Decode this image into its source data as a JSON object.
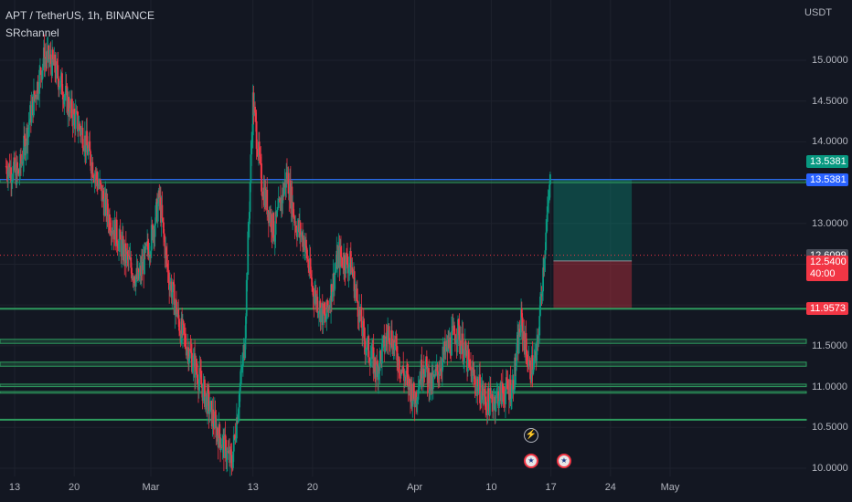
{
  "header": {
    "symbol": "APT / TetherUS, 1h, BINANCE",
    "indicator": "SRchannel"
  },
  "axis": {
    "unit": "USDT"
  },
  "price_ticks": [
    "15.0000",
    "14.5000",
    "14.0000",
    "13.0000",
    "11.5000",
    "11.0000",
    "10.5000",
    "10.0000"
  ],
  "time_ticks": [
    "13",
    "20",
    "Mar",
    "13",
    "20",
    "Apr",
    "10",
    "17",
    "24",
    "May"
  ],
  "price_tags": {
    "target_top": "13.5381",
    "resistance_line": "13.5381",
    "last_price": "12.6099",
    "entry_price": "12.5400",
    "countdown": "40:00",
    "stop_loss": "11.9573"
  },
  "icons": {
    "event_bolt": "lightning-icon",
    "flag1": "us-flag-icon",
    "flag2": "us-flag-icon"
  },
  "colors": {
    "background": "#131722",
    "up_candle": "#089981",
    "down_candle": "#f23645",
    "channel_line": "#2e9b5e",
    "resistance_line": "#2962ff",
    "profit_zone": "rgba(8,153,129,0.35)",
    "loss_zone": "rgba(242,54,69,0.35)"
  },
  "chart_data": {
    "type": "candlestick",
    "title": "APT / TetherUS, 1h, BINANCE",
    "xlabel": "",
    "ylabel": "USDT",
    "ylim": [
      9.95,
      15.55
    ],
    "x_ticks": [
      {
        "label": "13",
        "day": 13
      },
      {
        "label": "20",
        "day": 20
      },
      {
        "label": "Mar",
        "day": 29
      },
      {
        "label": "13",
        "day": 41
      },
      {
        "label": "20",
        "day": 48
      },
      {
        "label": "Apr",
        "day": 60
      },
      {
        "label": "10",
        "day": 69
      },
      {
        "label": "17",
        "day": 76
      },
      {
        "label": "24",
        "day": 83
      },
      {
        "label": "May",
        "day": 90
      }
    ],
    "price_path_days": [
      12,
      13.5,
      15,
      16.5,
      17.5,
      18.5,
      19.5,
      21,
      22.5,
      24,
      26,
      27.5,
      29,
      30,
      31,
      32.5,
      34,
      35,
      36,
      37,
      38.5,
      40,
      41,
      42,
      43.5,
      45,
      46,
      47,
      48,
      49.5,
      51,
      52.5,
      54,
      55.5,
      57,
      58.5,
      60,
      61,
      62,
      63.5,
      65,
      66.5,
      67.5,
      68.5,
      70,
      71.5,
      72.5,
      73.5,
      74.3,
      75.2,
      76
    ],
    "price_path": [
      13.7,
      13.6,
      14.4,
      15.05,
      14.95,
      14.7,
      14.4,
      14.1,
      13.6,
      13.1,
      12.6,
      12.3,
      12.8,
      13.3,
      12.4,
      11.7,
      11.3,
      11.0,
      10.7,
      10.4,
      10.05,
      11.5,
      14.5,
      13.5,
      12.9,
      13.6,
      13.0,
      12.8,
      12.2,
      11.8,
      12.6,
      12.5,
      11.6,
      11.2,
      11.7,
      11.2,
      10.85,
      11.3,
      11.0,
      11.4,
      11.7,
      11.2,
      11.0,
      10.8,
      10.9,
      11.0,
      11.8,
      11.2,
      11.35,
      12.6,
      13.6
    ],
    "support_resistance_lines": [
      {
        "from": 13.5,
        "to": 13.54
      },
      {
        "from": 11.53,
        "to": 11.58
      },
      {
        "from": 11.25,
        "to": 11.3
      },
      {
        "from": 11.0,
        "to": 11.03
      },
      {
        "from": 10.92,
        "to": 10.94
      },
      {
        "from": 11.96,
        "to": 11.96
      },
      {
        "from": 10.6,
        "to": 10.6
      }
    ],
    "position": {
      "type": "long",
      "entry": 12.54,
      "target": 13.5381,
      "stop": 11.9573,
      "start_day": 76.3,
      "end_day": 85.5
    },
    "last_price": 12.6099,
    "events": [
      {
        "type": "lightning",
        "day": 75.2
      },
      {
        "type": "us-flag",
        "day": 75.2
      },
      {
        "type": "us-flag",
        "day": 79.0
      }
    ]
  }
}
